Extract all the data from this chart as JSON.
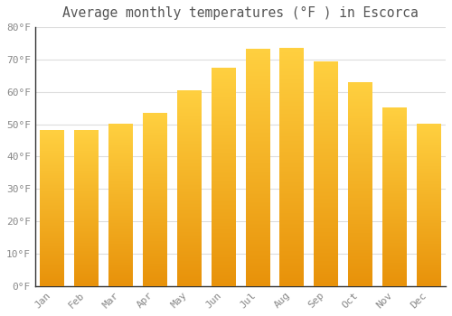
{
  "title": "Average monthly temperatures (°F ) in Escorca",
  "months": [
    "Jan",
    "Feb",
    "Mar",
    "Apr",
    "May",
    "Jun",
    "Jul",
    "Aug",
    "Sep",
    "Oct",
    "Nov",
    "Dec"
  ],
  "values": [
    48.0,
    48.2,
    50.2,
    53.4,
    60.4,
    67.3,
    73.2,
    73.4,
    69.4,
    63.0,
    55.0,
    50.0
  ],
  "bar_color_bottom": "#E8920A",
  "bar_color_top": "#FFD040",
  "background_color": "#FFFFFF",
  "grid_color": "#DDDDDD",
  "text_color": "#888888",
  "ylim": [
    0,
    80
  ],
  "yticks": [
    0,
    10,
    20,
    30,
    40,
    50,
    60,
    70,
    80
  ],
  "ytick_labels": [
    "0°F",
    "10°F",
    "20°F",
    "30°F",
    "40°F",
    "50°F",
    "60°F",
    "70°F",
    "80°F"
  ],
  "title_fontsize": 10.5,
  "tick_fontsize": 8,
  "title_color": "#555555"
}
